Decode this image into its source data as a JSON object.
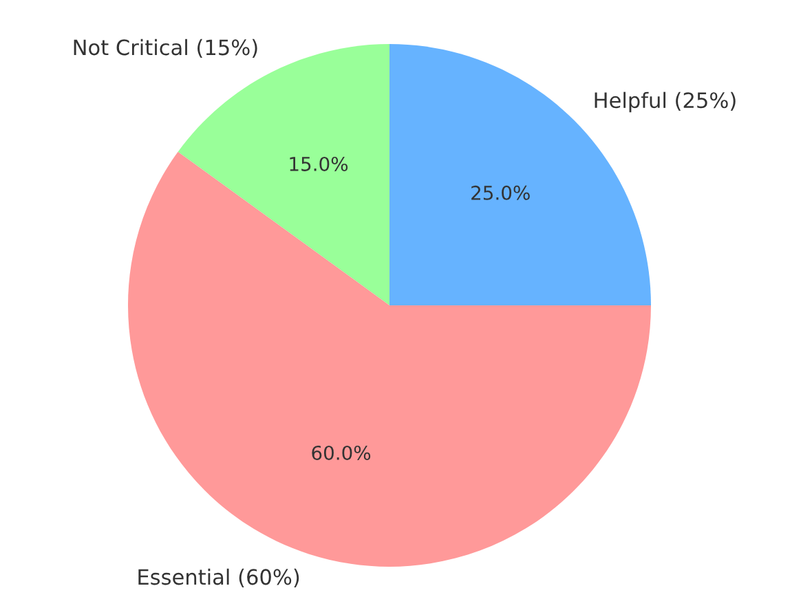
{
  "chart_data": {
    "type": "pie",
    "categories": [
      "Helpful (25%)",
      "Not Critical (15%)",
      "Essential (60%)"
    ],
    "values": [
      25,
      15,
      60
    ],
    "colors": [
      "#66b3ff",
      "#99ff99",
      "#ff9999"
    ],
    "value_labels": [
      "25.0%",
      "15.0%",
      "60.0%"
    ]
  }
}
